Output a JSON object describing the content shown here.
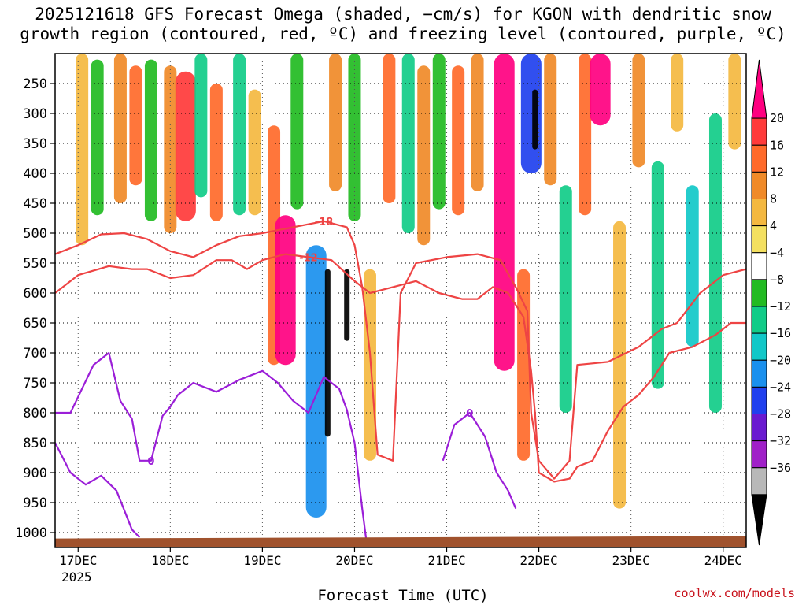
{
  "title": {
    "line1": "2025121618 GFS Forecast Omega (shaded, −cm/s) for KGON with dendritic snow",
    "line2": "growth region (contoured, red, ºC) and freezing level (contoured, purple, ºC)"
  },
  "credit": "coolwx.com/models",
  "chart_data": {
    "type": "heatmap",
    "title": "2025121618 GFS Forecast Omega (shaded, −cm/s) for KGON with dendritic snow growth region (contoured, red, ºC) and freezing level (contoured, purple, ºC)",
    "xlabel": "Forecast Time (UTC)",
    "ylabel": "",
    "x_ticks": [
      {
        "label": "17DEC",
        "sublabel": "2025",
        "hour": 0
      },
      {
        "label": "18DEC",
        "sublabel": "",
        "hour": 24
      },
      {
        "label": "19DEC",
        "sublabel": "",
        "hour": 48
      },
      {
        "label": "20DEC",
        "sublabel": "",
        "hour": 72
      },
      {
        "label": "21DEC",
        "sublabel": "",
        "hour": 96
      },
      {
        "label": "22DEC",
        "sublabel": "",
        "hour": 120
      },
      {
        "label": "23DEC",
        "sublabel": "",
        "hour": 144
      },
      {
        "label": "24DEC",
        "sublabel": "",
        "hour": 168
      }
    ],
    "x_range_hours": [
      -6,
      174
    ],
    "y_ticks": [
      250,
      300,
      350,
      400,
      450,
      500,
      550,
      600,
      650,
      700,
      750,
      800,
      850,
      900,
      950,
      1000
    ],
    "y_range_hPa": [
      200,
      1025
    ],
    "colorbar": {
      "levels": [
        "20",
        "16",
        "12",
        "8",
        "4",
        "−4",
        "−8",
        "−12",
        "−16",
        "−20",
        "−24",
        "−28",
        "−32",
        "−36"
      ],
      "colors": [
        "#ff0080",
        "#ff3a3a",
        "#ff6a2a",
        "#f08a28",
        "#f4b840",
        "#f4e060",
        "#ffffff",
        "#22bb22",
        "#11cc88",
        "#11c8c8",
        "#1a90ee",
        "#2040ee",
        "#6a1ad0",
        "#a020c8",
        "#b8b8b8",
        "#000000"
      ]
    },
    "omega_cells": [
      {
        "hour": 1,
        "p_top": 200,
        "p_bot": 520,
        "value": 7
      },
      {
        "hour": 5,
        "p_top": 210,
        "p_bot": 470,
        "value": -7
      },
      {
        "hour": 11,
        "p_top": 200,
        "p_bot": 450,
        "value": 9
      },
      {
        "hour": 15,
        "p_top": 220,
        "p_bot": 420,
        "value": 13
      },
      {
        "hour": 19,
        "p_top": 210,
        "p_bot": 480,
        "value": -6
      },
      {
        "hour": 24,
        "p_top": 220,
        "p_bot": 500,
        "value": 8
      },
      {
        "hour": 28,
        "p_top": 230,
        "p_bot": 480,
        "value": 18
      },
      {
        "hour": 32,
        "p_top": 200,
        "p_bot": 440,
        "value": -8
      },
      {
        "hour": 36,
        "p_top": 250,
        "p_bot": 480,
        "value": 14
      },
      {
        "hour": 42,
        "p_top": 200,
        "p_bot": 470,
        "value": -9
      },
      {
        "hour": 46,
        "p_top": 260,
        "p_bot": 470,
        "value": 6
      },
      {
        "hour": 51,
        "p_top": 320,
        "p_bot": 720,
        "value": 12
      },
      {
        "hour": 54,
        "p_top": 470,
        "p_bot": 720,
        "value": 22
      },
      {
        "hour": 57,
        "p_top": 200,
        "p_bot": 460,
        "value": -7
      },
      {
        "hour": 62,
        "p_top": 520,
        "p_bot": 975,
        "value": -18
      },
      {
        "hour": 65,
        "p_top": 560,
        "p_bot": 840,
        "value": -40
      },
      {
        "hour": 67,
        "p_top": 200,
        "p_bot": 430,
        "value": 9
      },
      {
        "hour": 70,
        "p_top": 560,
        "p_bot": 680,
        "value": -40
      },
      {
        "hour": 72,
        "p_top": 200,
        "p_bot": 480,
        "value": -6
      },
      {
        "hour": 76,
        "p_top": 560,
        "p_bot": 880,
        "value": 6
      },
      {
        "hour": 81,
        "p_top": 200,
        "p_bot": 450,
        "value": 13
      },
      {
        "hour": 86,
        "p_top": 200,
        "p_bot": 500,
        "value": -8
      },
      {
        "hour": 90,
        "p_top": 220,
        "p_bot": 520,
        "value": 10
      },
      {
        "hour": 94,
        "p_top": 200,
        "p_bot": 460,
        "value": -6
      },
      {
        "hour": 99,
        "p_top": 220,
        "p_bot": 470,
        "value": 12
      },
      {
        "hour": 104,
        "p_top": 200,
        "p_bot": 430,
        "value": 8
      },
      {
        "hour": 111,
        "p_top": 200,
        "p_bot": 730,
        "value": 24
      },
      {
        "hour": 116,
        "p_top": 560,
        "p_bot": 880,
        "value": 12
      },
      {
        "hour": 118,
        "p_top": 200,
        "p_bot": 400,
        "value": -20
      },
      {
        "hour": 119,
        "p_top": 260,
        "p_bot": 360,
        "value": -40
      },
      {
        "hour": 123,
        "p_top": 200,
        "p_bot": 420,
        "value": 10
      },
      {
        "hour": 127,
        "p_top": 420,
        "p_bot": 800,
        "value": -9
      },
      {
        "hour": 132,
        "p_top": 200,
        "p_bot": 470,
        "value": 14
      },
      {
        "hour": 136,
        "p_top": 200,
        "p_bot": 320,
        "value": 22
      },
      {
        "hour": 141,
        "p_top": 480,
        "p_bot": 960,
        "value": 7
      },
      {
        "hour": 146,
        "p_top": 200,
        "p_bot": 390,
        "value": 9
      },
      {
        "hour": 151,
        "p_top": 380,
        "p_bot": 760,
        "value": -10
      },
      {
        "hour": 156,
        "p_top": 200,
        "p_bot": 330,
        "value": 7
      },
      {
        "hour": 160,
        "p_top": 420,
        "p_bot": 690,
        "value": -14
      },
      {
        "hour": 166,
        "p_top": 300,
        "p_bot": 800,
        "value": -9
      },
      {
        "hour": 171,
        "p_top": 200,
        "p_bot": 360,
        "value": 6
      }
    ],
    "contours": [
      {
        "name": "-18",
        "color": "#ee4444",
        "label": "-18",
        "points": [
          [
            -6,
            535
          ],
          [
            0,
            520
          ],
          [
            6,
            502
          ],
          [
            12,
            500
          ],
          [
            18,
            510
          ],
          [
            24,
            530
          ],
          [
            30,
            540
          ],
          [
            36,
            520
          ],
          [
            42,
            505
          ],
          [
            48,
            500
          ],
          [
            56,
            490
          ],
          [
            64,
            480
          ],
          [
            70,
            490
          ],
          [
            72,
            520
          ],
          [
            74,
            590
          ],
          [
            76,
            700
          ],
          [
            78,
            870
          ],
          [
            82,
            880
          ],
          [
            84,
            600
          ],
          [
            88,
            550
          ],
          [
            96,
            540
          ],
          [
            104,
            535
          ],
          [
            110,
            545
          ],
          [
            114,
            590
          ],
          [
            117,
            630
          ],
          [
            118,
            800
          ],
          [
            120,
            880
          ],
          [
            124,
            910
          ],
          [
            128,
            880
          ],
          [
            130,
            720
          ],
          [
            138,
            715
          ],
          [
            146,
            690
          ],
          [
            152,
            660
          ],
          [
            156,
            650
          ],
          [
            162,
            600
          ],
          [
            168,
            570
          ],
          [
            174,
            560
          ]
        ]
      },
      {
        "name": "-12",
        "color": "#ee4444",
        "label": "-12",
        "points": [
          [
            -6,
            600
          ],
          [
            0,
            570
          ],
          [
            8,
            555
          ],
          [
            14,
            560
          ],
          [
            18,
            560
          ],
          [
            24,
            575
          ],
          [
            30,
            570
          ],
          [
            36,
            545
          ],
          [
            40,
            545
          ],
          [
            44,
            560
          ],
          [
            48,
            545
          ],
          [
            54,
            535
          ],
          [
            60,
            540
          ],
          [
            66,
            545
          ],
          [
            72,
            580
          ],
          [
            76,
            600
          ],
          [
            82,
            590
          ],
          [
            88,
            580
          ],
          [
            94,
            600
          ],
          [
            100,
            610
          ],
          [
            104,
            610
          ],
          [
            108,
            590
          ],
          [
            112,
            600
          ],
          [
            116,
            640
          ],
          [
            118,
            730
          ],
          [
            119,
            800
          ],
          [
            120,
            900
          ],
          [
            124,
            915
          ],
          [
            128,
            910
          ],
          [
            130,
            890
          ],
          [
            134,
            880
          ],
          [
            138,
            830
          ],
          [
            142,
            790
          ],
          [
            146,
            770
          ],
          [
            150,
            740
          ],
          [
            154,
            700
          ],
          [
            160,
            690
          ],
          [
            166,
            670
          ],
          [
            170,
            650
          ],
          [
            174,
            650
          ]
        ]
      },
      {
        "name": "0",
        "color": "#9b1ed8",
        "label": "0",
        "points": [
          [
            -6,
            800
          ],
          [
            -2,
            800
          ],
          [
            4,
            720
          ],
          [
            8,
            700
          ],
          [
            11,
            780
          ],
          [
            14,
            810
          ],
          [
            16,
            880
          ],
          [
            19,
            880
          ],
          [
            22,
            805
          ],
          [
            24,
            790
          ],
          [
            26,
            770
          ],
          [
            30,
            750
          ],
          [
            36,
            765
          ],
          [
            42,
            745
          ],
          [
            48,
            730
          ],
          [
            52,
            750
          ],
          [
            56,
            780
          ],
          [
            60,
            800
          ],
          [
            64,
            740
          ],
          [
            68,
            760
          ],
          [
            70,
            795
          ],
          [
            72,
            850
          ],
          [
            74,
            960
          ],
          [
            75,
            1010
          ]
        ]
      },
      {
        "name": "0b",
        "color": "#9b1ed8",
        "label": "0",
        "points": [
          [
            95,
            880
          ],
          [
            98,
            820
          ],
          [
            102,
            800
          ],
          [
            106,
            840
          ],
          [
            109,
            900
          ],
          [
            112,
            930
          ],
          [
            114,
            960
          ]
        ]
      },
      {
        "name": "0c",
        "color": "#9b1ed8",
        "label": "",
        "points": [
          [
            -6,
            850
          ],
          [
            -2,
            900
          ],
          [
            2,
            920
          ],
          [
            6,
            905
          ],
          [
            10,
            930
          ],
          [
            14,
            995
          ],
          [
            16,
            1008
          ]
        ]
      }
    ],
    "terrain": {
      "surface_hPa": 1010,
      "color": "#a0522d"
    }
  },
  "colors": {
    "terrain": "#a0522d",
    "credit": "#c8101a",
    "dendritic": "#ee4444",
    "freezing": "#9b1ed8"
  }
}
